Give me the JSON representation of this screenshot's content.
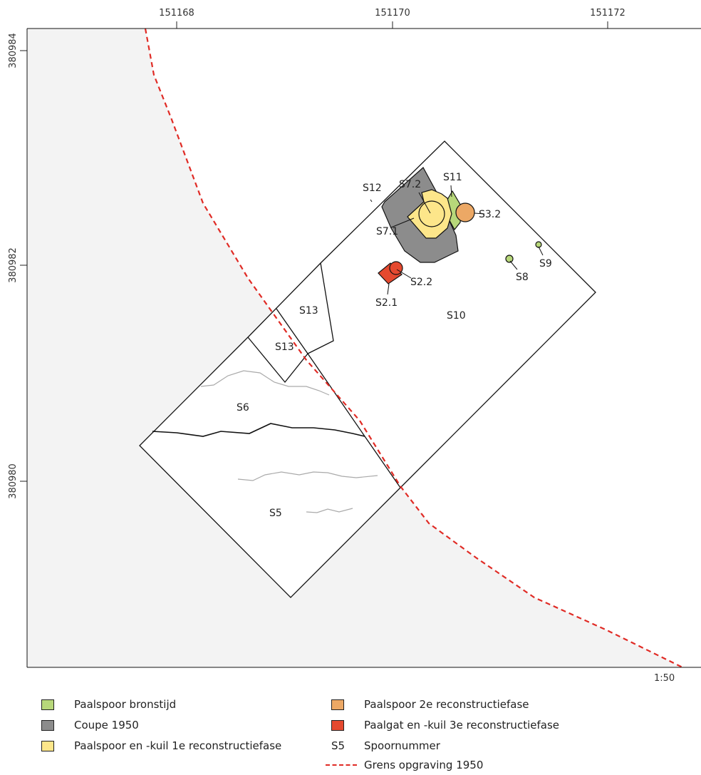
{
  "axes": {
    "x_ticks": [
      "151168",
      "151170",
      "151172"
    ],
    "y_ticks": [
      "380984",
      "380982",
      "380980"
    ]
  },
  "scale": "1:50",
  "features": {
    "s5": "S5",
    "s6": "S6",
    "s7_1": "S7.1",
    "s7_2": "S7.2",
    "s8": "S8",
    "s9": "S9",
    "s10": "S10",
    "s11": "S11",
    "s12": "S12",
    "s13_a": "S13",
    "s13_b": "S13",
    "s2_1": "S2.1",
    "s2_2": "S2.2",
    "s3_2": "S3.2"
  },
  "colors": {
    "bronstijd": "#b7d77a",
    "coupe": "#8c8c8c",
    "fase1": "#fde68a",
    "fase2": "#eca865",
    "fase3": "#e5492f",
    "grens": "#e02b25",
    "outside": "#f3f3f3"
  },
  "legend": {
    "bronstijd": "Paalspoor bronstijd",
    "coupe": "Coupe 1950",
    "fase1": "Paalspoor en -kuil 1e reconstructiefase",
    "fase2": "Paalspoor 2e reconstructiefase",
    "fase3": "Paalgat en -kuil 3e reconstructiefase",
    "spoornummer_symbol": "S5",
    "spoornummer": "Spoornummer",
    "grens": "Grens opgraving 1950"
  }
}
